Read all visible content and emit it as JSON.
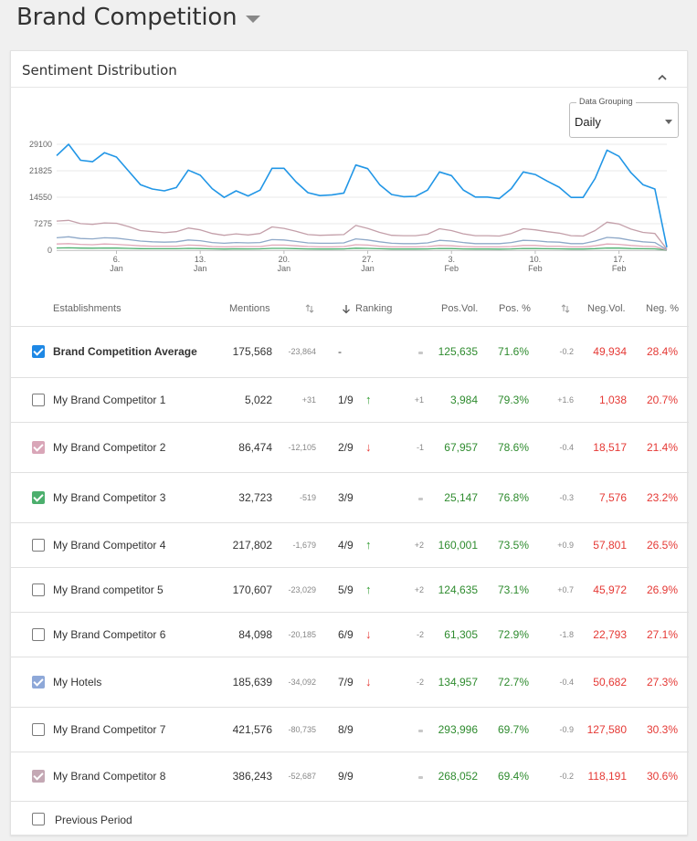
{
  "page": {
    "title": "Brand Competition"
  },
  "card": {
    "title": "Sentiment Distribution",
    "data_grouping": {
      "label": "Data Grouping",
      "value": "Daily"
    }
  },
  "chart_data": {
    "type": "line",
    "y_ticks": [
      "29100",
      "21825",
      "14550",
      "7275",
      "0"
    ],
    "ylim": [
      0,
      29100
    ],
    "x_tick_labels": [
      {
        "day": "6.",
        "month": "Jan"
      },
      {
        "day": "13.",
        "month": "Jan"
      },
      {
        "day": "20.",
        "month": "Jan"
      },
      {
        "day": "27.",
        "month": "Jan"
      },
      {
        "day": "3.",
        "month": "Feb"
      },
      {
        "day": "10.",
        "month": "Feb"
      },
      {
        "day": "17.",
        "month": "Feb"
      }
    ],
    "x": [
      "Jan 1",
      "Jan 2",
      "Jan 3",
      "Jan 4",
      "Jan 5",
      "Jan 6",
      "Jan 7",
      "Jan 8",
      "Jan 9",
      "Jan 10",
      "Jan 11",
      "Jan 12",
      "Jan 13",
      "Jan 14",
      "Jan 15",
      "Jan 16",
      "Jan 17",
      "Jan 18",
      "Jan 19",
      "Jan 20",
      "Jan 21",
      "Jan 22",
      "Jan 23",
      "Jan 24",
      "Jan 25",
      "Jan 26",
      "Jan 27",
      "Jan 28",
      "Jan 29",
      "Jan 30",
      "Jan 31",
      "Feb 1",
      "Feb 2",
      "Feb 3",
      "Feb 4",
      "Feb 5",
      "Feb 6",
      "Feb 7",
      "Feb 8",
      "Feb 9",
      "Feb 10",
      "Feb 11",
      "Feb 12",
      "Feb 13",
      "Feb 14",
      "Feb 15",
      "Feb 16",
      "Feb 17",
      "Feb 18",
      "Feb 19",
      "Feb 20",
      "Feb 21"
    ],
    "series": [
      {
        "color": "#2196e6",
        "values": [
          26000,
          29100,
          24700,
          24300,
          26800,
          25600,
          21800,
          18000,
          16800,
          16300,
          17200,
          22000,
          20600,
          16900,
          14500,
          16300,
          14900,
          16500,
          22500,
          22500,
          18800,
          15800,
          15000,
          15200,
          15700,
          23400,
          22400,
          18000,
          15300,
          14700,
          14800,
          16500,
          21500,
          20500,
          16500,
          14600,
          14600,
          14200,
          16900,
          21500,
          20800,
          19000,
          17300,
          14500,
          14500,
          19700,
          27500,
          25800,
          21300,
          18000,
          16800,
          800
        ]
      },
      {
        "color": "#c4a0aa",
        "values": [
          8000,
          8200,
          7300,
          7100,
          7500,
          7400,
          6500,
          5400,
          5100,
          4800,
          5100,
          6100,
          5600,
          4600,
          4100,
          4500,
          4200,
          4600,
          6400,
          6000,
          5200,
          4300,
          4100,
          4200,
          4300,
          6800,
          6000,
          4900,
          4100,
          4000,
          4000,
          4400,
          5900,
          5400,
          4500,
          4000,
          4000,
          3900,
          4600,
          5900,
          5600,
          5100,
          4700,
          4000,
          3900,
          5400,
          7700,
          7200,
          5800,
          4900,
          4600,
          300
        ]
      },
      {
        "color": "#8ea8c8",
        "values": [
          3400,
          3700,
          3200,
          3100,
          3400,
          3300,
          2900,
          2500,
          2300,
          2200,
          2300,
          2800,
          2600,
          2100,
          1900,
          2100,
          2000,
          2100,
          2900,
          2800,
          2400,
          2000,
          1900,
          1900,
          2000,
          3100,
          2800,
          2300,
          1900,
          1800,
          1800,
          2000,
          2700,
          2500,
          2100,
          1800,
          1800,
          1800,
          2100,
          2700,
          2600,
          2300,
          2200,
          1800,
          1800,
          2500,
          3500,
          3300,
          2700,
          2300,
          2100,
          150
        ]
      },
      {
        "color": "#e0a8b8",
        "values": [
          1700,
          1800,
          1600,
          1500,
          1700,
          1600,
          1400,
          1200,
          1100,
          1100,
          1100,
          1400,
          1300,
          1000,
          900,
          1000,
          1000,
          1000,
          1400,
          1400,
          1200,
          1000,
          900,
          900,
          1000,
          1500,
          1400,
          1100,
          900,
          900,
          900,
          1000,
          1300,
          1200,
          1000,
          900,
          900,
          900,
          1000,
          1300,
          1300,
          1100,
          1100,
          900,
          900,
          1200,
          1700,
          1600,
          1300,
          1100,
          1000,
          80
        ]
      },
      {
        "color": "#4caf6d",
        "values": [
          600,
          650,
          570,
          550,
          600,
          580,
          500,
          430,
          400,
          390,
          400,
          500,
          460,
          370,
          330,
          370,
          350,
          370,
          500,
          490,
          420,
          350,
          330,
          330,
          350,
          540,
          490,
          400,
          330,
          320,
          320,
          350,
          470,
          440,
          360,
          320,
          320,
          310,
          360,
          470,
          450,
          400,
          380,
          320,
          320,
          430,
          610,
          570,
          460,
          400,
          370,
          30
        ]
      }
    ]
  },
  "table": {
    "headers": {
      "establishments": "Establishments",
      "mentions": "Mentions",
      "ranking": "Ranking",
      "pos_vol": "Pos.Vol.",
      "pos_pct": "Pos. %",
      "neg_vol": "Neg.Vol.",
      "neg_pct": "Neg. %"
    },
    "rows": [
      {
        "name": "Brand Competition Average",
        "checked": true,
        "color": "#1e88e5",
        "mentions": "175,568",
        "mentions_delta": "-23,864",
        "ranking": "-",
        "trend": "",
        "rank_delta": "",
        "pos_vol": "125,635",
        "pos_pct": "71.6%",
        "pos_delta": "-0.2",
        "neg_vol": "49,934",
        "neg_pct": "28.4%"
      },
      {
        "name": "My Brand Competitor 1",
        "checked": false,
        "color": "",
        "mentions": "5,022",
        "mentions_delta": "+31",
        "ranking": "1/9",
        "trend": "up",
        "rank_delta": "+1",
        "pos_vol": "3,984",
        "pos_pct": "79.3%",
        "pos_delta": "+1.6",
        "neg_vol": "1,038",
        "neg_pct": "20.7%"
      },
      {
        "name": "My Brand Competitor 2",
        "checked": true,
        "color": "#d9a6b8",
        "mentions": "86,474",
        "mentions_delta": "-12,105",
        "ranking": "2/9",
        "trend": "down",
        "rank_delta": "-1",
        "pos_vol": "67,957",
        "pos_pct": "78.6%",
        "pos_delta": "-0.4",
        "neg_vol": "18,517",
        "neg_pct": "21.4%"
      },
      {
        "name": "My Brand Competitor 3",
        "checked": true,
        "color": "#4caf6d",
        "mentions": "32,723",
        "mentions_delta": "-519",
        "ranking": "3/9",
        "trend": "",
        "rank_delta": "",
        "pos_vol": "25,147",
        "pos_pct": "76.8%",
        "pos_delta": "-0.3",
        "neg_vol": "7,576",
        "neg_pct": "23.2%"
      },
      {
        "name": "My Brand Competitor 4",
        "checked": false,
        "color": "",
        "mentions": "217,802",
        "mentions_delta": "-1,679",
        "ranking": "4/9",
        "trend": "up",
        "rank_delta": "+2",
        "pos_vol": "160,001",
        "pos_pct": "73.5%",
        "pos_delta": "+0.9",
        "neg_vol": "57,801",
        "neg_pct": "26.5%"
      },
      {
        "name": "My Brand competitor 5",
        "checked": false,
        "color": "",
        "mentions": "170,607",
        "mentions_delta": "-23,029",
        "ranking": "5/9",
        "trend": "up",
        "rank_delta": "+2",
        "pos_vol": "124,635",
        "pos_pct": "73.1%",
        "pos_delta": "+0.7",
        "neg_vol": "45,972",
        "neg_pct": "26.9%"
      },
      {
        "name": "My Brand Competitor 6",
        "checked": false,
        "color": "",
        "mentions": "84,098",
        "mentions_delta": "-20,185",
        "ranking": "6/9",
        "trend": "down",
        "rank_delta": "-2",
        "pos_vol": "61,305",
        "pos_pct": "72.9%",
        "pos_delta": "-1.8",
        "neg_vol": "22,793",
        "neg_pct": "27.1%"
      },
      {
        "name": "My Hotels",
        "checked": true,
        "color": "#8ea8d8",
        "mentions": "185,639",
        "mentions_delta": "-34,092",
        "ranking": "7/9",
        "trend": "down",
        "rank_delta": "-2",
        "pos_vol": "134,957",
        "pos_pct": "72.7%",
        "pos_delta": "-0.4",
        "neg_vol": "50,682",
        "neg_pct": "27.3%"
      },
      {
        "name": "My Brand Competitor 7",
        "checked": false,
        "color": "",
        "mentions": "421,576",
        "mentions_delta": "-80,735",
        "ranking": "8/9",
        "trend": "",
        "rank_delta": "",
        "pos_vol": "293,996",
        "pos_pct": "69.7%",
        "pos_delta": "-0.9",
        "neg_vol": "127,580",
        "neg_pct": "30.3%"
      },
      {
        "name": "My Brand Competitor 8",
        "checked": true,
        "color": "#c4a8b4",
        "mentions": "386,243",
        "mentions_delta": "-52,687",
        "ranking": "9/9",
        "trend": "",
        "rank_delta": "",
        "pos_vol": "268,052",
        "pos_pct": "69.4%",
        "pos_delta": "-0.2",
        "neg_vol": "118,191",
        "neg_pct": "30.6%"
      }
    ],
    "footer": {
      "label": "Previous Period",
      "checked": false
    }
  }
}
